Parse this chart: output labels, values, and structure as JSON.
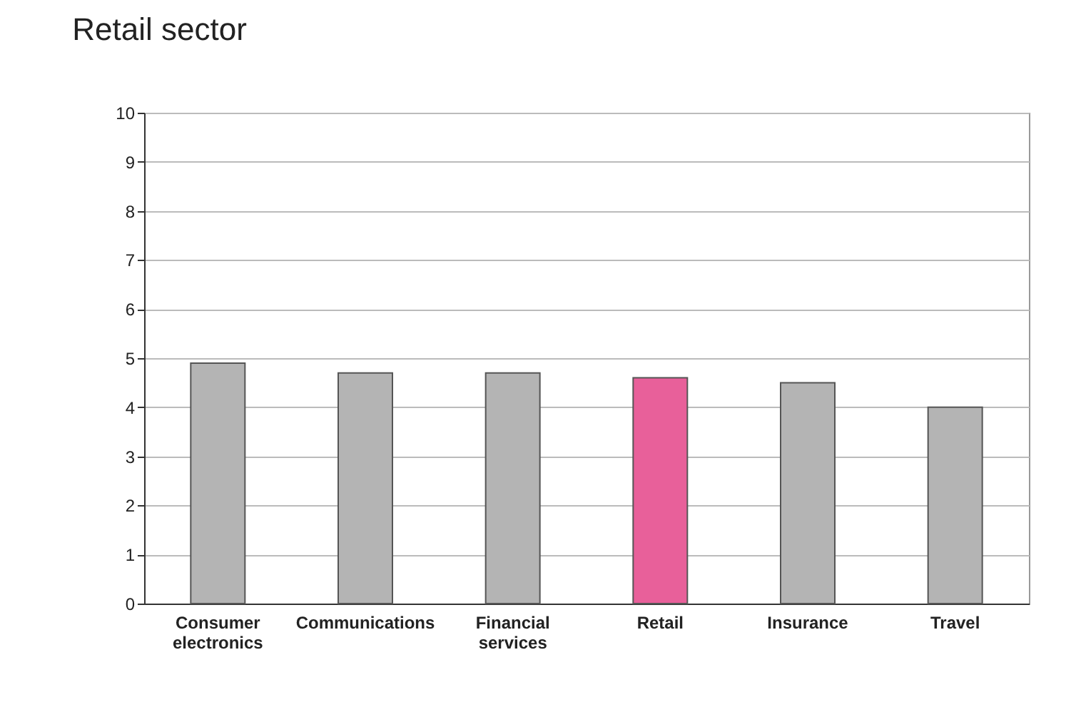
{
  "chart_data": {
    "type": "bar",
    "title": "Retail sector",
    "categories": [
      "Consumer electronics",
      "Communications",
      "Financial services",
      "Retail",
      "Insurance",
      "Travel"
    ],
    "values": [
      4.9,
      4.7,
      4.7,
      4.6,
      4.5,
      4.0
    ],
    "colors": [
      "#b4b4b4",
      "#b4b4b4",
      "#b4b4b4",
      "#e8609a",
      "#b4b4b4",
      "#b4b4b4"
    ],
    "ylim": [
      0,
      10
    ],
    "yticks": [
      0,
      1,
      2,
      3,
      4,
      5,
      6,
      7,
      8,
      9,
      10
    ],
    "grid": "y"
  }
}
